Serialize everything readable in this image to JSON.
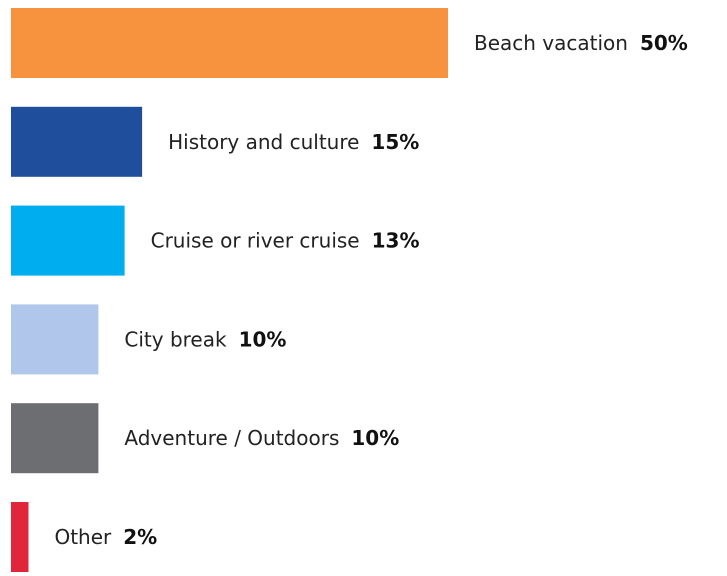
{
  "chart_data": {
    "type": "hbar",
    "categories": [
      "Beach vacation",
      "History and culture",
      "Cruise or river cruise",
      "City break",
      "Adventure / Outdoors",
      "Other"
    ],
    "values": [
      50,
      15,
      13,
      10,
      10,
      2
    ],
    "value_labels": [
      "50%",
      "15%",
      "13%",
      "10%",
      "10%",
      "2%"
    ],
    "colors": [
      "#f7923f",
      "#1f4e9c",
      "#00aeef",
      "#b0c6ea",
      "#6d6e71",
      "#e0263a"
    ]
  }
}
